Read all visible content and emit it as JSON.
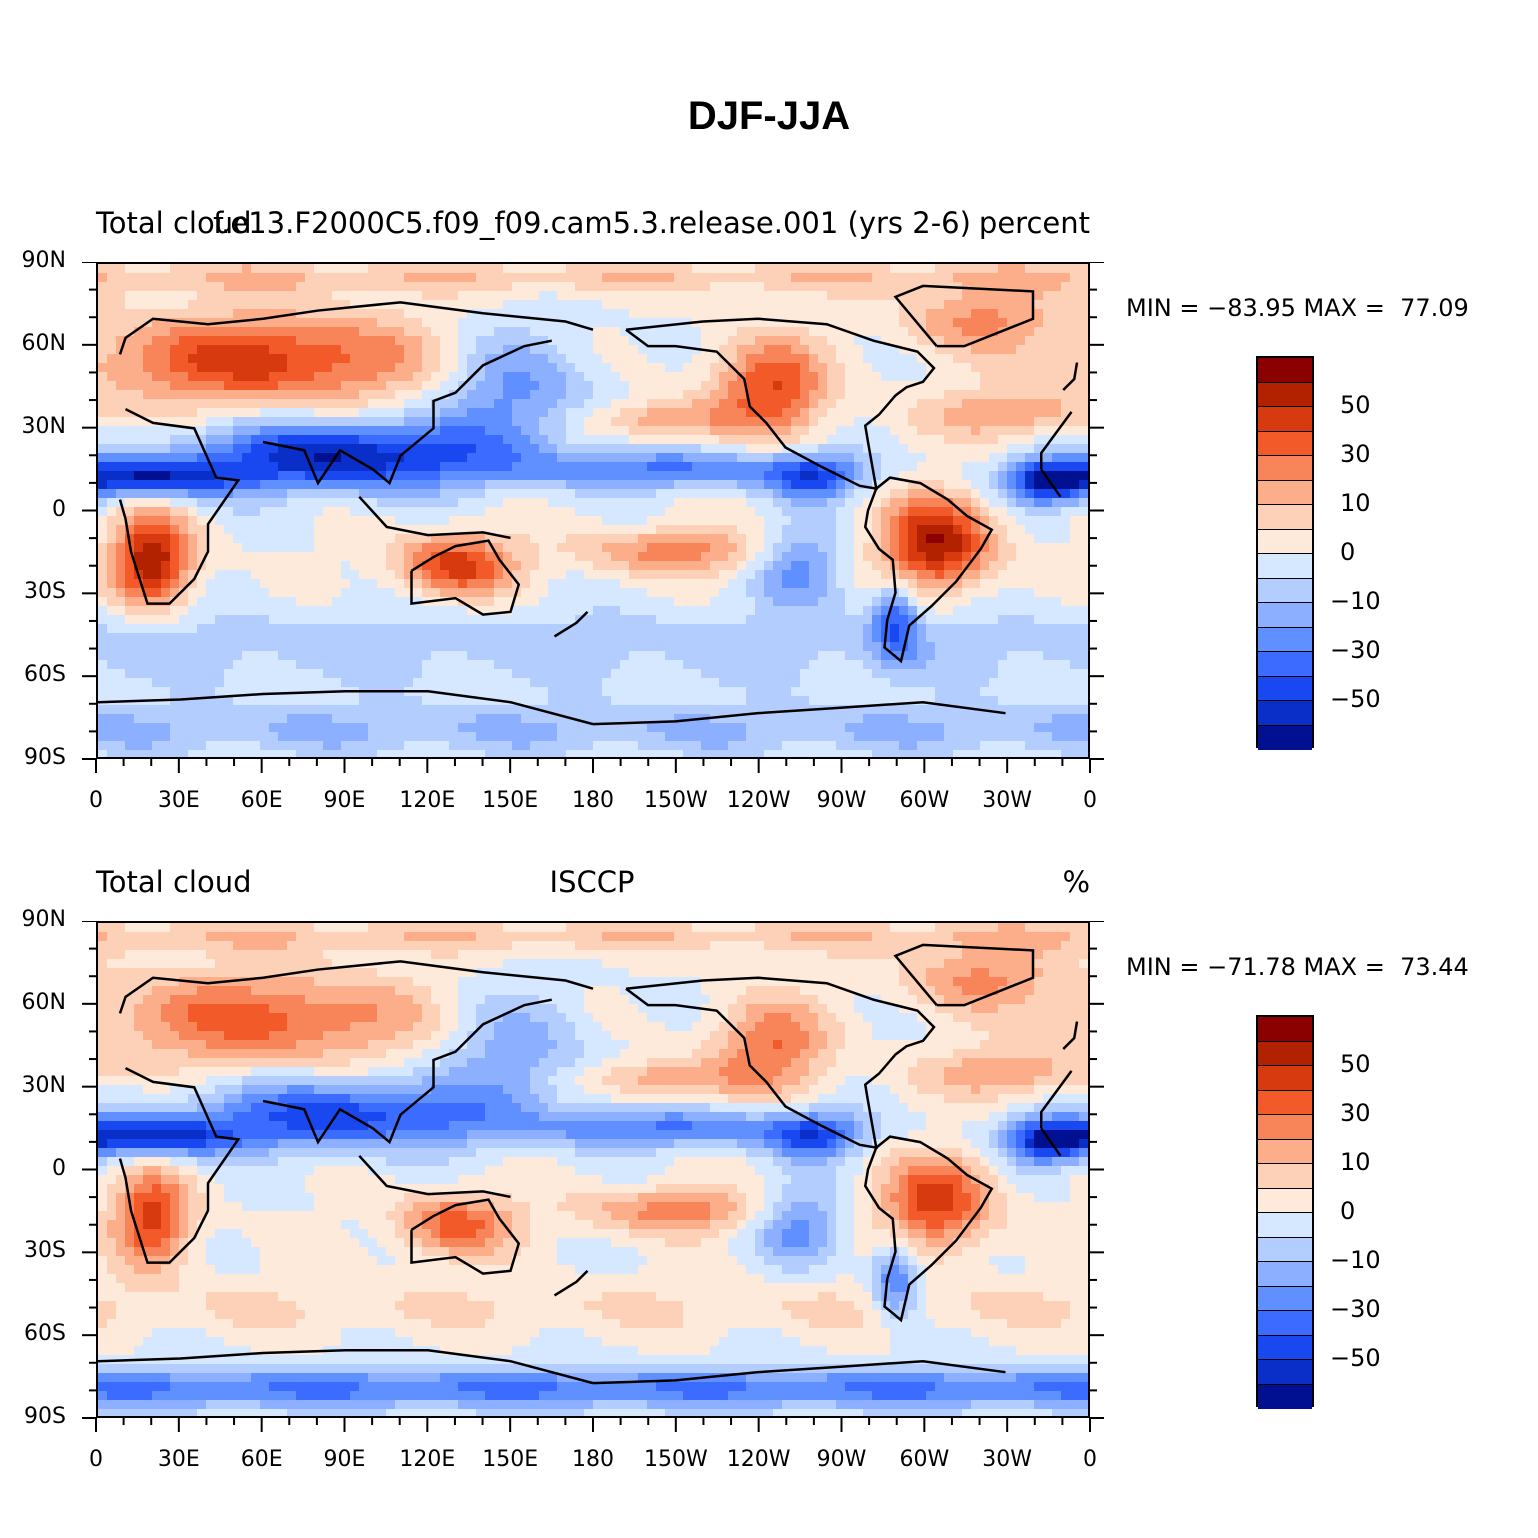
{
  "title": "DJF-JJA",
  "colorbar": {
    "colors": [
      "#8b0000",
      "#b22200",
      "#d83a10",
      "#f25a2a",
      "#f8845a",
      "#fcae8a",
      "#fdd0b8",
      "#feeadb",
      "#d6e8ff",
      "#b4cdff",
      "#8cb0ff",
      "#6090ff",
      "#3c6cff",
      "#1a48f0",
      "#0a2fc8",
      "#001090"
    ],
    "labels": [
      "50",
      "30",
      "10",
      "0",
      "−10",
      "−30",
      "−50"
    ]
  },
  "axes": {
    "x_labels": [
      "0",
      "30E",
      "60E",
      "90E",
      "120E",
      "150E",
      "180",
      "150W",
      "120W",
      "90W",
      "60W",
      "30W",
      "0"
    ],
    "y_labels": [
      "90N",
      "60N",
      "30N",
      "0",
      "30S",
      "60S",
      "90S"
    ]
  },
  "panels": [
    {
      "left": "Total cloud",
      "center": "f.e13.F2000C5.f09_f09.cam5.3.release.001 (yrs 2-6)",
      "right": "percent",
      "min_label": "MIN =",
      "min": "−83.95",
      "max_label": "MAX =",
      "max": "77.09"
    },
    {
      "left": "Total cloud",
      "center": "ISCCP",
      "right": "%",
      "min_label": "MIN =",
      "min": "−71.78",
      "max_label": "MAX =",
      "max": "73.44"
    }
  ]
}
